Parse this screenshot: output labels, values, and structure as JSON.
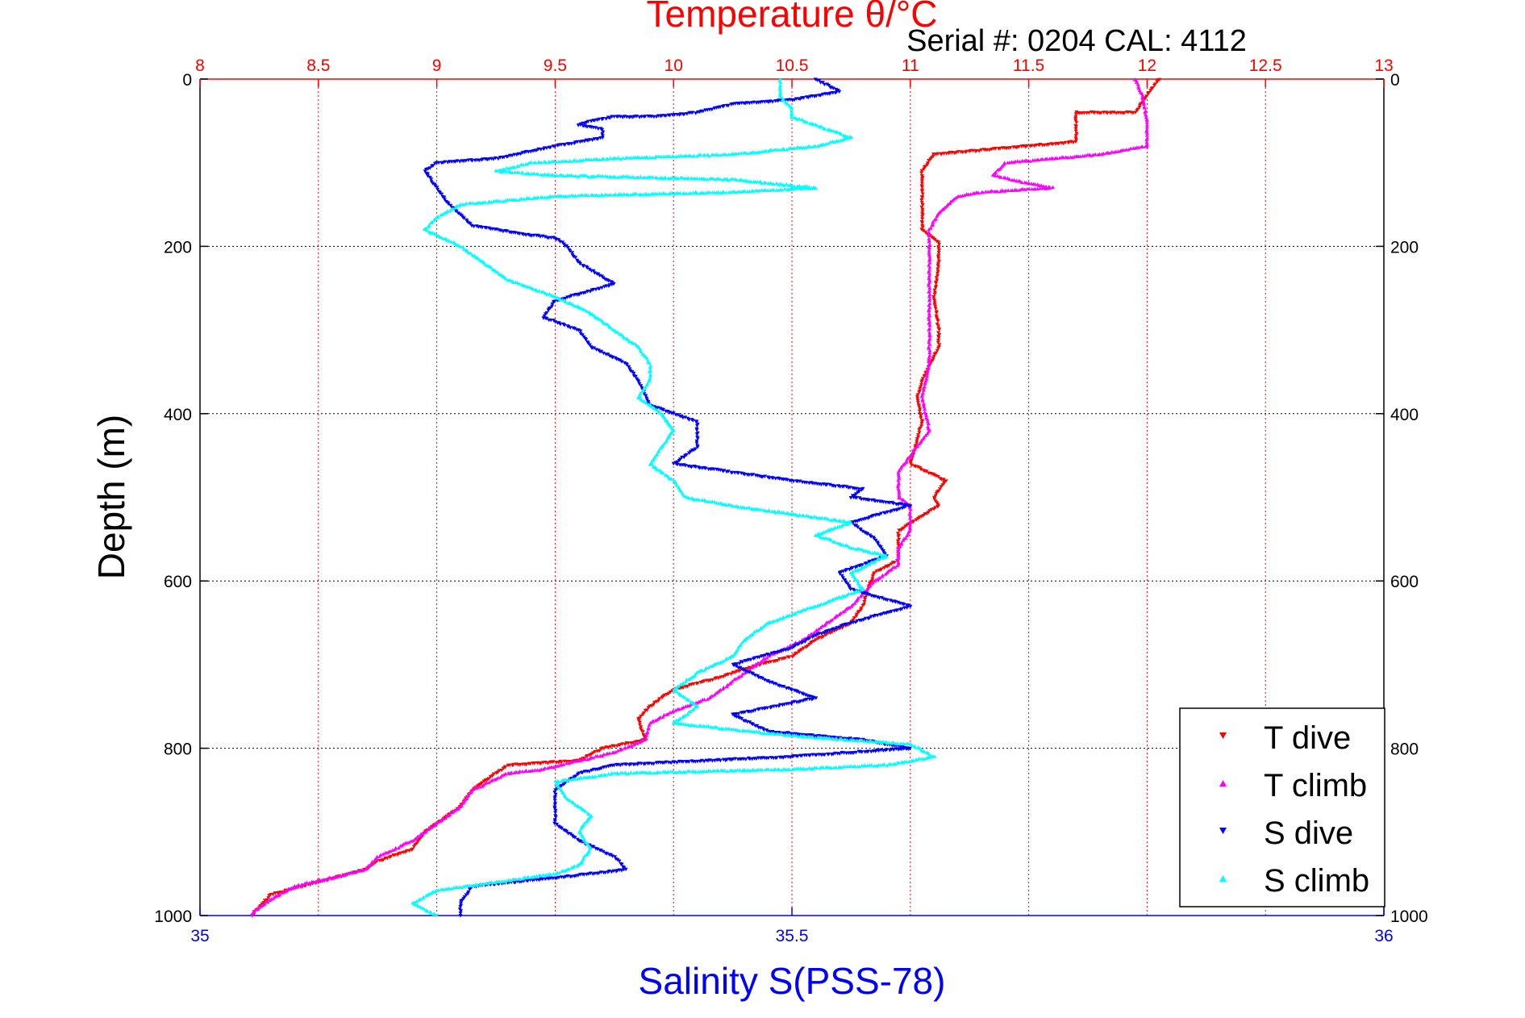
{
  "chart_data": {
    "type": "scatter",
    "title": "Temperature θ/°C",
    "subtitle": "Serial #: 0204  CAL: 4112",
    "ylabel": "Depth (m)",
    "xlabel_bottom": "Salinity S(PSS-78)",
    "xlabel_top": "Temperature θ/°C",
    "ylim": [
      0,
      1000
    ],
    "y_reversed": true,
    "xlim_bottom": [
      35,
      36
    ],
    "xlim_top": [
      8,
      13
    ],
    "y_ticks": [
      "0",
      "200",
      "400",
      "600",
      "800",
      "1000"
    ],
    "x_bottom_ticks": [
      "35",
      "35.5",
      "36"
    ],
    "x_top_ticks": [
      "8",
      "8.5",
      "9",
      "9.5",
      "10",
      "10.5",
      "11",
      "11.5",
      "12",
      "12.5",
      "13"
    ],
    "grid": true,
    "legend_position": "bottom-right",
    "colors": {
      "temperature_axis": "#ff0000",
      "salinity_axis": "#0000ff",
      "t_dive": "#ff0000",
      "t_climb": "#ff00ff",
      "s_dive": "#0000ff",
      "s_climb": "#00ffff"
    },
    "series": [
      {
        "name": "T dive",
        "axis": "temperature",
        "marker": "triangle-down",
        "color": "#ff0000",
        "points": [
          [
            12.05,
            0
          ],
          [
            12.0,
            20
          ],
          [
            11.95,
            40
          ],
          [
            11.7,
            40
          ],
          [
            11.7,
            60
          ],
          [
            11.7,
            75
          ],
          [
            11.3,
            85
          ],
          [
            11.1,
            90
          ],
          [
            11.05,
            110
          ],
          [
            11.05,
            140
          ],
          [
            11.05,
            160
          ],
          [
            11.05,
            180
          ],
          [
            11.12,
            195
          ],
          [
            11.12,
            220
          ],
          [
            11.1,
            260
          ],
          [
            11.12,
            300
          ],
          [
            11.12,
            320
          ],
          [
            11.05,
            360
          ],
          [
            11.03,
            380
          ],
          [
            11.05,
            410
          ],
          [
            11.02,
            440
          ],
          [
            11.0,
            460
          ],
          [
            11.15,
            480
          ],
          [
            11.1,
            500
          ],
          [
            11.12,
            510
          ],
          [
            10.95,
            540
          ],
          [
            10.95,
            575
          ],
          [
            10.85,
            590
          ],
          [
            10.82,
            610
          ],
          [
            10.8,
            630
          ],
          [
            10.75,
            650
          ],
          [
            10.6,
            670
          ],
          [
            10.5,
            690
          ],
          [
            10.3,
            705
          ],
          [
            10.2,
            715
          ],
          [
            10.0,
            730
          ],
          [
            9.9,
            750
          ],
          [
            9.85,
            765
          ],
          [
            9.88,
            790
          ],
          [
            9.7,
            800
          ],
          [
            9.6,
            815
          ],
          [
            9.3,
            820
          ],
          [
            9.25,
            830
          ],
          [
            9.15,
            850
          ],
          [
            9.1,
            870
          ],
          [
            8.95,
            900
          ],
          [
            8.9,
            920
          ],
          [
            8.75,
            935
          ],
          [
            8.7,
            945
          ],
          [
            8.5,
            960
          ],
          [
            8.3,
            975
          ],
          [
            8.25,
            990
          ],
          [
            8.22,
            1000
          ]
        ]
      },
      {
        "name": "T climb",
        "axis": "temperature",
        "marker": "triangle-up",
        "color": "#ff00ff",
        "points": [
          [
            11.95,
            0
          ],
          [
            11.98,
            20
          ],
          [
            12.0,
            50
          ],
          [
            12.0,
            80
          ],
          [
            11.8,
            90
          ],
          [
            11.4,
            100
          ],
          [
            11.35,
            115
          ],
          [
            11.5,
            125
          ],
          [
            11.6,
            130
          ],
          [
            11.3,
            135
          ],
          [
            11.2,
            140
          ],
          [
            11.12,
            160
          ],
          [
            11.08,
            180
          ],
          [
            11.08,
            220
          ],
          [
            11.08,
            260
          ],
          [
            11.08,
            300
          ],
          [
            11.08,
            340
          ],
          [
            11.05,
            380
          ],
          [
            11.08,
            420
          ],
          [
            11.0,
            450
          ],
          [
            10.95,
            470
          ],
          [
            10.95,
            500
          ],
          [
            11.0,
            510
          ],
          [
            11.0,
            540
          ],
          [
            10.95,
            560
          ],
          [
            10.95,
            580
          ],
          [
            10.85,
            600
          ],
          [
            10.75,
            630
          ],
          [
            10.65,
            650
          ],
          [
            10.55,
            670
          ],
          [
            10.4,
            690
          ],
          [
            10.35,
            700
          ],
          [
            10.25,
            720
          ],
          [
            10.15,
            740
          ],
          [
            10.0,
            755
          ],
          [
            9.9,
            770
          ],
          [
            9.88,
            790
          ],
          [
            9.75,
            805
          ],
          [
            9.6,
            815
          ],
          [
            9.45,
            825
          ],
          [
            9.3,
            830
          ],
          [
            9.15,
            850
          ],
          [
            9.1,
            870
          ],
          [
            9.0,
            890
          ],
          [
            8.9,
            910
          ],
          [
            8.75,
            930
          ],
          [
            8.7,
            945
          ],
          [
            8.55,
            955
          ],
          [
            8.4,
            965
          ],
          [
            8.3,
            980
          ],
          [
            8.23,
            995
          ],
          [
            8.22,
            1000
          ]
        ]
      },
      {
        "name": "S dive",
        "axis": "salinity",
        "marker": "triangle-down",
        "color": "#0000ff",
        "points": [
          [
            35.52,
            0
          ],
          [
            35.54,
            15
          ],
          [
            35.5,
            25
          ],
          [
            35.45,
            30
          ],
          [
            35.42,
            40
          ],
          [
            35.38,
            45
          ],
          [
            35.35,
            45
          ],
          [
            35.33,
            50
          ],
          [
            35.32,
            55
          ],
          [
            35.34,
            60
          ],
          [
            35.34,
            70
          ],
          [
            35.3,
            80
          ],
          [
            35.25,
            95
          ],
          [
            35.2,
            100
          ],
          [
            35.19,
            110
          ],
          [
            35.2,
            130
          ],
          [
            35.21,
            150
          ],
          [
            35.23,
            175
          ],
          [
            35.27,
            185
          ],
          [
            35.3,
            190
          ],
          [
            35.31,
            200
          ],
          [
            35.32,
            220
          ],
          [
            35.35,
            245
          ],
          [
            35.3,
            265
          ],
          [
            35.29,
            285
          ],
          [
            35.32,
            300
          ],
          [
            35.33,
            320
          ],
          [
            35.36,
            340
          ],
          [
            35.37,
            360
          ],
          [
            35.38,
            390
          ],
          [
            35.42,
            410
          ],
          [
            35.42,
            440
          ],
          [
            35.4,
            460
          ],
          [
            35.45,
            470
          ],
          [
            35.5,
            480
          ],
          [
            35.56,
            490
          ],
          [
            35.55,
            500
          ],
          [
            35.6,
            510
          ],
          [
            35.55,
            530
          ],
          [
            35.57,
            550
          ],
          [
            35.58,
            570
          ],
          [
            35.54,
            590
          ],
          [
            35.55,
            610
          ],
          [
            35.6,
            630
          ],
          [
            35.55,
            650
          ],
          [
            35.52,
            665
          ],
          [
            35.5,
            680
          ],
          [
            35.45,
            700
          ],
          [
            35.48,
            720
          ],
          [
            35.52,
            740
          ],
          [
            35.45,
            760
          ],
          [
            35.48,
            780
          ],
          [
            35.56,
            790
          ],
          [
            35.6,
            800
          ],
          [
            35.5,
            810
          ],
          [
            35.35,
            820
          ],
          [
            35.32,
            830
          ],
          [
            35.3,
            850
          ],
          [
            35.3,
            870
          ],
          [
            35.3,
            890
          ],
          [
            35.32,
            910
          ],
          [
            35.35,
            930
          ],
          [
            35.36,
            945
          ],
          [
            35.3,
            955
          ],
          [
            35.23,
            965
          ],
          [
            35.22,
            985
          ],
          [
            35.22,
            1000
          ]
        ]
      },
      {
        "name": "S climb",
        "axis": "salinity",
        "marker": "triangle-up",
        "color": "#00ffff",
        "points": [
          [
            35.49,
            0
          ],
          [
            35.49,
            20
          ],
          [
            35.5,
            35
          ],
          [
            35.5,
            45
          ],
          [
            35.52,
            55
          ],
          [
            35.55,
            70
          ],
          [
            35.52,
            80
          ],
          [
            35.45,
            90
          ],
          [
            35.35,
            95
          ],
          [
            35.28,
            100
          ],
          [
            35.25,
            110
          ],
          [
            35.3,
            115
          ],
          [
            35.45,
            120
          ],
          [
            35.52,
            130
          ],
          [
            35.45,
            135
          ],
          [
            35.3,
            140
          ],
          [
            35.22,
            150
          ],
          [
            35.2,
            165
          ],
          [
            35.19,
            180
          ],
          [
            35.22,
            200
          ],
          [
            35.24,
            220
          ],
          [
            35.26,
            240
          ],
          [
            35.3,
            260
          ],
          [
            35.33,
            280
          ],
          [
            35.35,
            300
          ],
          [
            35.37,
            320
          ],
          [
            35.38,
            340
          ],
          [
            35.38,
            360
          ],
          [
            35.37,
            380
          ],
          [
            35.39,
            400
          ],
          [
            35.4,
            420
          ],
          [
            35.39,
            440
          ],
          [
            35.38,
            460
          ],
          [
            35.4,
            480
          ],
          [
            35.41,
            500
          ],
          [
            35.45,
            510
          ],
          [
            35.5,
            520
          ],
          [
            35.55,
            530
          ],
          [
            35.52,
            545
          ],
          [
            35.55,
            560
          ],
          [
            35.58,
            570
          ],
          [
            35.55,
            590
          ],
          [
            35.56,
            610
          ],
          [
            35.52,
            630
          ],
          [
            35.48,
            650
          ],
          [
            35.46,
            670
          ],
          [
            35.45,
            690
          ],
          [
            35.42,
            710
          ],
          [
            35.4,
            730
          ],
          [
            35.42,
            750
          ],
          [
            35.4,
            770
          ],
          [
            35.5,
            785
          ],
          [
            35.6,
            795
          ],
          [
            35.62,
            810
          ],
          [
            35.58,
            820
          ],
          [
            35.5,
            825
          ],
          [
            35.35,
            830
          ],
          [
            35.3,
            840
          ],
          [
            35.31,
            860
          ],
          [
            35.33,
            880
          ],
          [
            35.32,
            900
          ],
          [
            35.33,
            920
          ],
          [
            35.32,
            940
          ],
          [
            35.3,
            950
          ],
          [
            35.25,
            960
          ],
          [
            35.2,
            970
          ],
          [
            35.18,
            985
          ],
          [
            35.2,
            1000
          ]
        ]
      }
    ]
  }
}
